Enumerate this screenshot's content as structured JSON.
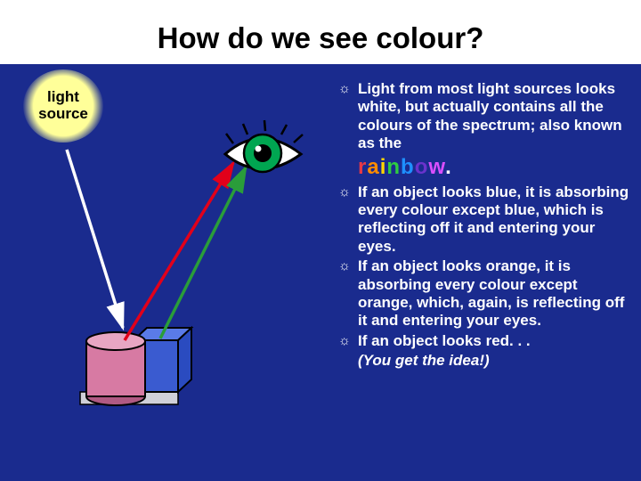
{
  "title": "How do we see colour?",
  "light_source": {
    "line1": "light",
    "line2": "source"
  },
  "bullets": {
    "b1": "Light from most light sources looks white, but actually contains all the colours of the spectrum; also known as the",
    "b2": "If an object looks blue, it is absorbing every colour except blue, which is reflecting off it and entering your eyes.",
    "b3": "If an object looks orange, it is absorbing every colour except orange, which, again, is reflecting off it and entering your eyes.",
    "b4": "If an object looks red. . .",
    "note": "(You get the idea!)"
  },
  "rainbow": {
    "letters": [
      "r",
      "a",
      "i",
      "n",
      "b",
      "o",
      "w"
    ],
    "colors": [
      "#e63946",
      "#ff8c00",
      "#ffd400",
      "#2ecc40",
      "#1e90ff",
      "#6a33cc",
      "#d94fff"
    ],
    "period_color": "#ffffff",
    "period": "."
  },
  "diagram": {
    "light_ray_color": "#ffffff",
    "red_ray_color": "#e2001a",
    "green_ray_color": "#2a9d3a",
    "blue_box_color": "#3a5bd0",
    "cylinder_fill": "#d77aa3",
    "cylinder_top": "#e8a6c3",
    "ground_color": "#d0d0d8",
    "eye_white": "#ffffff",
    "eye_iris": "#00a651",
    "eye_pupil": "#000000",
    "eye_outline": "#000000"
  },
  "colors": {
    "background": "#1a2b8e",
    "title_bg": "#ffffff",
    "title_text": "#000000",
    "text": "#ffffff",
    "light_glow": "#ffff99"
  }
}
